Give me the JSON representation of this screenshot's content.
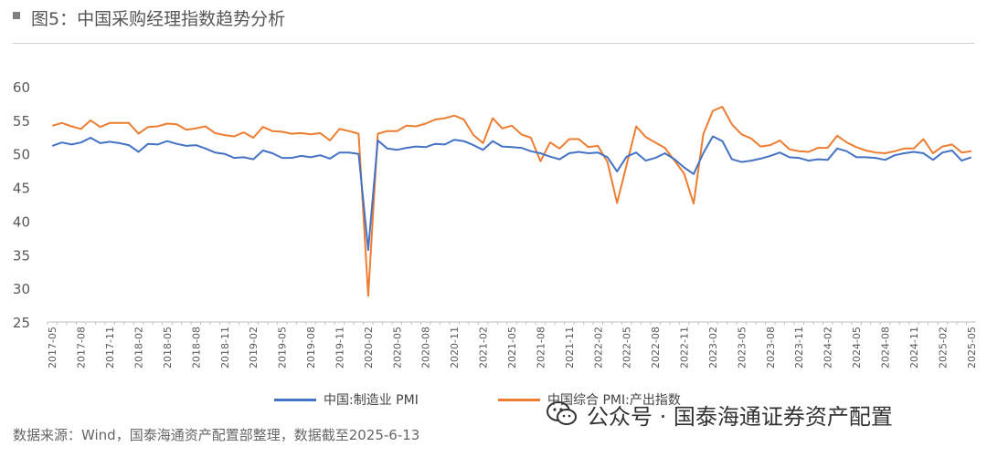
{
  "header": {
    "title": "图5：中国采购经理指数趋势分析",
    "marker": "■"
  },
  "footer": {
    "source": "数据来源：Wind，国泰海通资产配置部整理，数据截至2025-6-13"
  },
  "watermark": {
    "text": "公众号 · 国泰海通证券资产配置",
    "icon": "wechat-icon"
  },
  "colors": {
    "manufacturing": "#4472c4",
    "composite": "#ed7d31",
    "axis": "#bfbfbf",
    "text": "#595959"
  },
  "chart_data": {
    "type": "line",
    "title": "",
    "xlabel": "",
    "ylabel": "",
    "ylim": [
      25,
      60
    ],
    "yticks": [
      25,
      30,
      35,
      40,
      45,
      50,
      55,
      60
    ],
    "grid": false,
    "legend_position": "bottom",
    "x": [
      "2017-05",
      "2017-06",
      "2017-07",
      "2017-08",
      "2017-09",
      "2017-10",
      "2017-11",
      "2017-12",
      "2018-01",
      "2018-02",
      "2018-03",
      "2018-04",
      "2018-05",
      "2018-06",
      "2018-07",
      "2018-08",
      "2018-09",
      "2018-10",
      "2018-11",
      "2018-12",
      "2019-01",
      "2019-02",
      "2019-03",
      "2019-04",
      "2019-05",
      "2019-06",
      "2019-07",
      "2019-08",
      "2019-09",
      "2019-10",
      "2019-11",
      "2019-12",
      "2020-01",
      "2020-02",
      "2020-03",
      "2020-04",
      "2020-05",
      "2020-06",
      "2020-07",
      "2020-08",
      "2020-09",
      "2020-10",
      "2020-11",
      "2020-12",
      "2021-01",
      "2021-02",
      "2021-03",
      "2021-04",
      "2021-05",
      "2021-06",
      "2021-07",
      "2021-08",
      "2021-09",
      "2021-10",
      "2021-11",
      "2021-12",
      "2022-01",
      "2022-02",
      "2022-03",
      "2022-04",
      "2022-05",
      "2022-06",
      "2022-07",
      "2022-08",
      "2022-09",
      "2022-10",
      "2022-11",
      "2022-12",
      "2023-01",
      "2023-02",
      "2023-03",
      "2023-04",
      "2023-05",
      "2023-06",
      "2023-07",
      "2023-08",
      "2023-09",
      "2023-10",
      "2023-11",
      "2023-12",
      "2024-01",
      "2024-02",
      "2024-03",
      "2024-04",
      "2024-05",
      "2024-06",
      "2024-07",
      "2024-08",
      "2024-09",
      "2024-10",
      "2024-11",
      "2024-12",
      "2025-01",
      "2025-02",
      "2025-03",
      "2025-04",
      "2025-05"
    ],
    "tick_labels": [
      "2017-05",
      "2017-08",
      "2017-11",
      "2018-02",
      "2018-05",
      "2018-08",
      "2018-11",
      "2019-02",
      "2019-05",
      "2019-08",
      "2019-11",
      "2020-02",
      "2020-05",
      "2020-08",
      "2020-11",
      "2021-02",
      "2021-05",
      "2021-08",
      "2021-11",
      "2022-02",
      "2022-05",
      "2022-08",
      "2022-11",
      "2023-02",
      "2023-05",
      "2023-08",
      "2023-11",
      "2024-02",
      "2024-05",
      "2024-08",
      "2024-11",
      "2025-02",
      "2025-05"
    ],
    "series": [
      {
        "name": "中国:制造业 PMI",
        "color": "#4472c4",
        "values": [
          51.2,
          51.7,
          51.4,
          51.7,
          52.4,
          51.6,
          51.8,
          51.6,
          51.3,
          50.3,
          51.5,
          51.4,
          51.9,
          51.5,
          51.2,
          51.3,
          50.8,
          50.2,
          50.0,
          49.4,
          49.5,
          49.2,
          50.5,
          50.1,
          49.4,
          49.4,
          49.7,
          49.5,
          49.8,
          49.3,
          50.2,
          50.2,
          50.0,
          35.7,
          52.0,
          50.8,
          50.6,
          50.9,
          51.1,
          51.0,
          51.5,
          51.4,
          52.1,
          51.9,
          51.3,
          50.6,
          51.9,
          51.1,
          51.0,
          50.9,
          50.4,
          50.1,
          49.6,
          49.2,
          50.1,
          50.3,
          50.1,
          50.2,
          49.5,
          47.4,
          49.6,
          50.2,
          49.0,
          49.4,
          50.1,
          49.2,
          48.0,
          47.0,
          50.1,
          52.6,
          51.9,
          49.2,
          48.8,
          49.0,
          49.3,
          49.7,
          50.2,
          49.5,
          49.4,
          49.0,
          49.2,
          49.1,
          50.8,
          50.4,
          49.5,
          49.5,
          49.4,
          49.1,
          49.8,
          50.1,
          50.3,
          50.1,
          49.1,
          50.2,
          50.5,
          49.0,
          49.5
        ]
      },
      {
        "name": "中国综合 PMI:产出指数",
        "color": "#ed7d31",
        "values": [
          54.2,
          54.6,
          54.1,
          53.7,
          55.0,
          54.0,
          54.6,
          54.6,
          54.6,
          53.0,
          54.0,
          54.1,
          54.5,
          54.4,
          53.6,
          53.8,
          54.1,
          53.1,
          52.8,
          52.6,
          53.2,
          52.4,
          54.0,
          53.4,
          53.3,
          53.0,
          53.1,
          52.9,
          53.1,
          52.0,
          53.7,
          53.4,
          53.0,
          28.9,
          53.0,
          53.4,
          53.4,
          54.2,
          54.1,
          54.5,
          55.1,
          55.3,
          55.7,
          55.1,
          52.8,
          51.6,
          55.3,
          53.8,
          54.2,
          52.9,
          52.4,
          48.9,
          51.7,
          50.8,
          52.2,
          52.2,
          51.0,
          51.2,
          48.8,
          42.7,
          48.4,
          54.1,
          52.5,
          51.7,
          50.9,
          49.0,
          47.1,
          42.6,
          52.9,
          56.4,
          57.0,
          54.4,
          52.9,
          52.3,
          51.1,
          51.3,
          52.0,
          50.7,
          50.4,
          50.3,
          50.9,
          50.9,
          52.7,
          51.7,
          51.0,
          50.5,
          50.2,
          50.1,
          50.4,
          50.8,
          50.8,
          52.2,
          50.1,
          51.1,
          51.4,
          50.2,
          50.4
        ]
      }
    ]
  }
}
